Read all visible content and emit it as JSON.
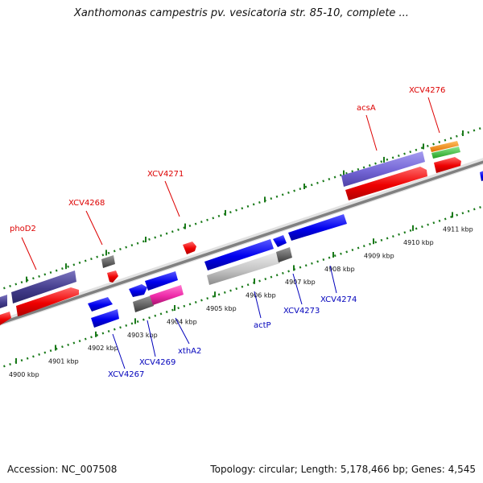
{
  "title": "Xanthomonas campestris pv. vesicatoria str. 85-10, complete ...",
  "footer": {
    "accession": "Accession: NC_007508",
    "summary": "Topology: circular; Length: 5,178,466 bp; Genes: 4,545"
  },
  "colors": {
    "axis": "#808080",
    "ticks": "#1a7a1a",
    "label_forward": "#dd0000",
    "label_reverse": "#0000bb"
  },
  "scale_ticks": [
    {
      "label": "4900 kbp"
    },
    {
      "label": "4901 kbp"
    },
    {
      "label": "4902 kbp"
    },
    {
      "label": "4903 kbp"
    },
    {
      "label": "4904 kbp"
    },
    {
      "label": "4905 kbp"
    },
    {
      "label": "4906 kbp"
    },
    {
      "label": "4907 kbp"
    },
    {
      "label": "4908 kbp"
    },
    {
      "label": "4909 kbp"
    },
    {
      "label": "4910 kbp"
    },
    {
      "label": "4911 kbp"
    }
  ],
  "gene_labels": [
    {
      "text": "phoD2",
      "strand": "forward"
    },
    {
      "text": "XCV4268",
      "strand": "forward"
    },
    {
      "text": "XCV4271",
      "strand": "forward"
    },
    {
      "text": "acsA",
      "strand": "forward"
    },
    {
      "text": "XCV4276",
      "strand": "forward"
    },
    {
      "text": "XCV4267",
      "strand": "reverse"
    },
    {
      "text": "XCV4269",
      "strand": "reverse"
    },
    {
      "text": "xthA2",
      "strand": "reverse"
    },
    {
      "text": "actP",
      "strand": "reverse"
    },
    {
      "text": "XCV4273",
      "strand": "reverse"
    },
    {
      "text": "XCV4274",
      "strand": "reverse"
    }
  ]
}
